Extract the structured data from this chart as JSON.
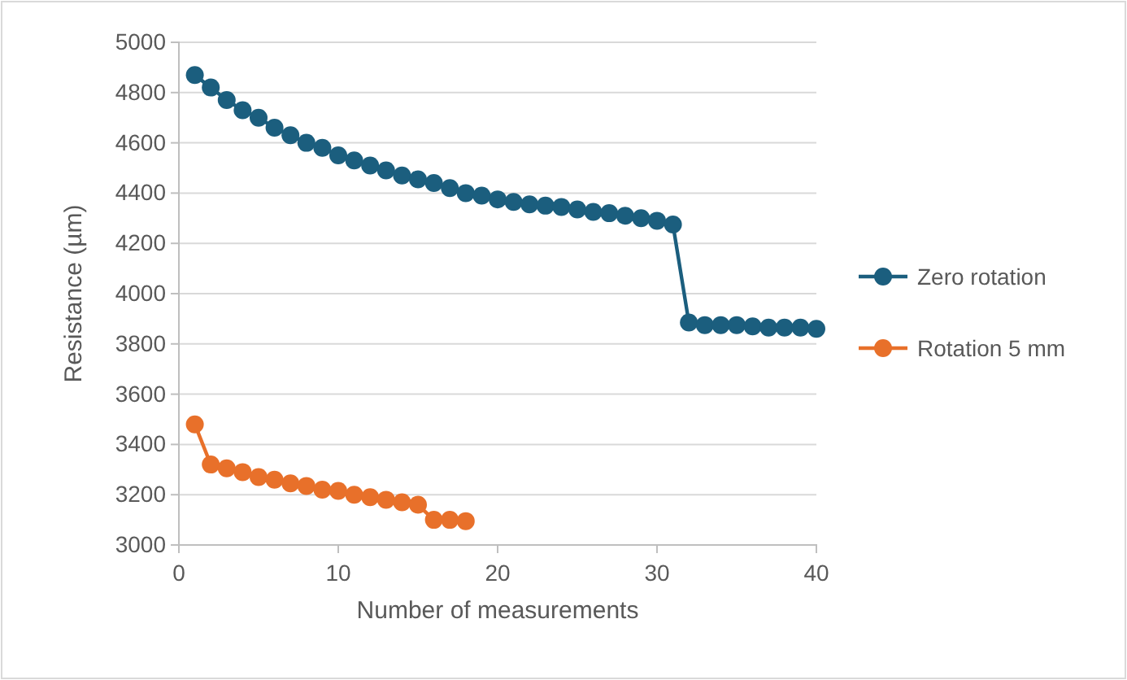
{
  "chart_data": {
    "type": "line",
    "xlabel": "Number of measurements",
    "ylabel": "Resistance (µm)",
    "xlim": [
      0,
      40
    ],
    "xticks": [
      0,
      10,
      20,
      30,
      40
    ],
    "ylim": [
      3000,
      5000
    ],
    "yticks": [
      3000,
      3200,
      3400,
      3600,
      3800,
      4000,
      4200,
      4400,
      4600,
      4800,
      5000
    ],
    "grid": "y",
    "legend": "right",
    "marker": "circle",
    "line_style": "solid",
    "series": [
      {
        "name": "Zero rotation",
        "color": "#1b5e7e",
        "x": [
          1,
          2,
          3,
          4,
          5,
          6,
          7,
          8,
          9,
          10,
          11,
          12,
          13,
          14,
          15,
          16,
          17,
          18,
          19,
          20,
          21,
          22,
          23,
          24,
          25,
          26,
          27,
          28,
          29,
          30,
          31,
          32,
          33,
          34,
          35,
          36,
          37,
          38,
          39,
          40
        ],
        "values": [
          4870,
          4820,
          4770,
          4730,
          4700,
          4660,
          4630,
          4600,
          4580,
          4550,
          4530,
          4510,
          4490,
          4470,
          4455,
          4440,
          4420,
          4400,
          4390,
          4375,
          4365,
          4355,
          4350,
          4345,
          4335,
          4325,
          4320,
          4310,
          4300,
          4290,
          4275,
          3885,
          3875,
          3875,
          3875,
          3870,
          3865,
          3865,
          3865,
          3860
        ]
      },
      {
        "name": "Rotation 5 mm",
        "color": "#e8702a",
        "x": [
          1,
          2,
          3,
          4,
          5,
          6,
          7,
          8,
          9,
          10,
          11,
          12,
          13,
          14,
          15,
          16,
          17,
          18
        ],
        "values": [
          3480,
          3320,
          3305,
          3290,
          3270,
          3260,
          3245,
          3235,
          3220,
          3215,
          3200,
          3190,
          3180,
          3170,
          3160,
          3100,
          3100,
          3095
        ]
      }
    ]
  }
}
